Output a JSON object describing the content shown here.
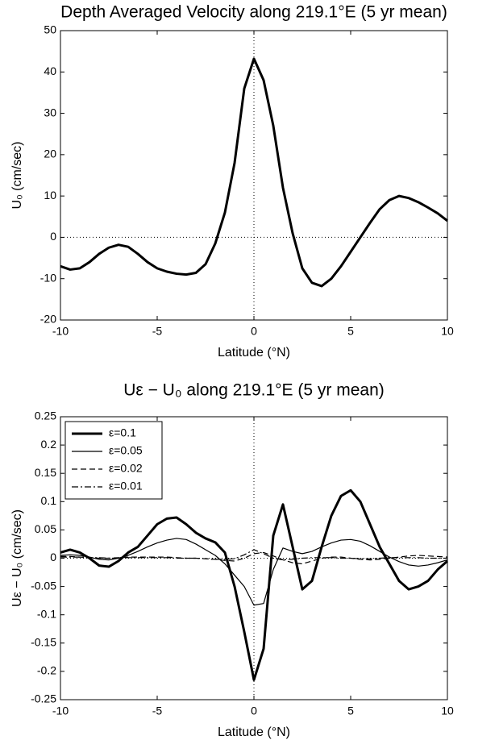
{
  "chart_data": [
    {
      "type": "line",
      "title": "Depth Averaged Velocity along 219.1°E (5 yr mean)",
      "xlabel": "Latitude (°N)",
      "ylabel": "U₀ (cm/sec)",
      "x": [
        -10,
        -9.5,
        -9,
        -8.5,
        -8,
        -7.5,
        -7,
        -6.5,
        -6,
        -5.5,
        -5,
        -4.5,
        -4,
        -3.5,
        -3,
        -2.5,
        -2,
        -1.5,
        -1,
        -0.5,
        0,
        0.5,
        1,
        1.5,
        2,
        2.5,
        3,
        3.5,
        4,
        4.5,
        5,
        5.5,
        6,
        6.5,
        7,
        7.5,
        8,
        8.5,
        9,
        9.5,
        10
      ],
      "values": [
        -7,
        -7.8,
        -7.5,
        -6,
        -4,
        -2.5,
        -1.8,
        -2.3,
        -4,
        -6,
        -7.5,
        -8.3,
        -8.8,
        -9,
        -8.6,
        -6.5,
        -1.5,
        6,
        18,
        36,
        43.2,
        38,
        27,
        12,
        1,
        -7.5,
        -11,
        -11.8,
        -10,
        -7,
        -3.5,
        0,
        3.5,
        6.8,
        9,
        10,
        9.5,
        8.5,
        7.2,
        5.8,
        4
      ],
      "color": "#000000",
      "width": 3,
      "xlim": [
        -10,
        10
      ],
      "xticks": [
        -10,
        -5,
        0,
        5,
        10
      ],
      "ylim": [
        -20,
        50
      ],
      "yticks": [
        -20,
        -10,
        0,
        10,
        20,
        30,
        40,
        50
      ],
      "zero_lines": true
    },
    {
      "type": "line",
      "title": "Uε − U₀ along 219.1°E (5 yr mean)",
      "xlabel": "Latitude (°N)",
      "ylabel": "Uε − U₀ (cm/sec)",
      "x": [
        -10,
        -9.5,
        -9,
        -8.5,
        -8,
        -7.5,
        -7,
        -6.5,
        -6,
        -5.5,
        -5,
        -4.5,
        -4,
        -3.5,
        -3,
        -2.5,
        -2,
        -1.5,
        -1,
        -0.5,
        0,
        0.5,
        1,
        1.5,
        2,
        2.5,
        3,
        3.5,
        4,
        4.5,
        5,
        5.5,
        6,
        6.5,
        7,
        7.5,
        8,
        8.5,
        9,
        9.5,
        10
      ],
      "series": [
        {
          "name": "ε=0.1",
          "color": "#000000",
          "width": 3,
          "dash": "none",
          "values": [
            0.01,
            0.015,
            0.01,
            0,
            -0.013,
            -0.015,
            -0.005,
            0.01,
            0.02,
            0.04,
            0.06,
            0.07,
            0.072,
            0.06,
            0.045,
            0.035,
            0.028,
            0.01,
            -0.05,
            -0.13,
            -0.215,
            -0.16,
            0.04,
            0.095,
            0.02,
            -0.055,
            -0.04,
            0.02,
            0.075,
            0.11,
            0.12,
            0.1,
            0.06,
            0.02,
            -0.01,
            -0.04,
            -0.055,
            -0.05,
            -0.04,
            -0.02,
            -0.005
          ]
        },
        {
          "name": "ε=0.05",
          "color": "#000000",
          "width": 1.2,
          "dash": "none",
          "values": [
            0.005,
            0.006,
            0.005,
            0.002,
            -0.002,
            -0.003,
            0,
            0.005,
            0.012,
            0.02,
            0.027,
            0.032,
            0.035,
            0.033,
            0.025,
            0.015,
            0.005,
            -0.01,
            -0.03,
            -0.05,
            -0.083,
            -0.08,
            -0.02,
            0.018,
            0.012,
            0.008,
            0.012,
            0.02,
            0.027,
            0.032,
            0.033,
            0.03,
            0.022,
            0.012,
            0.002,
            -0.006,
            -0.012,
            -0.014,
            -0.012,
            -0.008,
            -0.003
          ]
        },
        {
          "name": "ε=0.02",
          "color": "#000000",
          "width": 1.2,
          "dash": "7 4",
          "values": [
            0.003,
            0.003,
            0.002,
            0.001,
            0,
            0,
            0.001,
            0.002,
            0.002,
            0.002,
            0.002,
            0.002,
            0.001,
            0,
            0,
            -0.001,
            -0.002,
            -0.004,
            -0.005,
            0,
            0.008,
            0.01,
            0.004,
            -0.003,
            -0.008,
            -0.01,
            -0.005,
            0,
            0.002,
            0.002,
            0,
            -0.002,
            -0.003,
            -0.002,
            0,
            0.002,
            0.004,
            0.005,
            0.004,
            0.003,
            0.002
          ]
        },
        {
          "name": "ε=0.01",
          "color": "#000000",
          "width": 1.2,
          "dash": "8 3 2 3",
          "values": [
            0.002,
            0.002,
            0.002,
            0.001,
            0.001,
            0,
            0,
            0.001,
            0.001,
            0.001,
            0.001,
            0.001,
            0,
            0,
            0,
            -0.001,
            -0.002,
            -0.002,
            -0.001,
            0.006,
            0.015,
            0.008,
            0,
            -0.003,
            -0.002,
            0,
            0.001,
            0.001,
            0.001,
            0,
            0,
            -0.001,
            -0.001,
            0,
            0.001,
            0.001,
            0.001,
            0.001,
            0,
            0,
            0
          ]
        }
      ],
      "legend": "upper left",
      "xlim": [
        -10,
        10
      ],
      "xticks": [
        -10,
        -5,
        0,
        5,
        10
      ],
      "ylim": [
        -0.25,
        0.25
      ],
      "yticks": [
        -0.25,
        -0.2,
        -0.15,
        -0.1,
        -0.05,
        0,
        0.05,
        0.1,
        0.15,
        0.2,
        0.25
      ],
      "zero_lines": true
    }
  ]
}
